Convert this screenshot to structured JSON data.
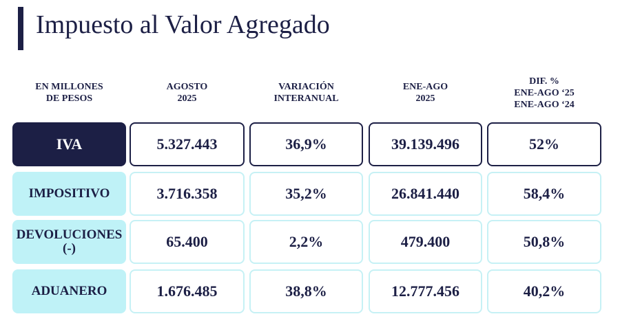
{
  "header": {
    "title": "Impuesto al Valor Agregado"
  },
  "table": {
    "columns": [
      [
        "EN MILLONES",
        "DE PESOS"
      ],
      [
        "AGOSTO",
        "2025"
      ],
      [
        "VARIACIÓN",
        "INTERANUAL"
      ],
      [
        "ENE-AGO",
        "2025"
      ],
      [
        "DIF. %",
        "ENE-AGO ‘25",
        "ENE-AGO ‘24"
      ]
    ],
    "rows": [
      {
        "label": [
          "IVA"
        ],
        "cells": [
          "5.327.443",
          "36,9%",
          "39.139.496",
          "52%"
        ]
      },
      {
        "label": [
          "IMPOSITIVO"
        ],
        "cells": [
          "3.716.358",
          "35,2%",
          "26.841.440",
          "58,4%"
        ]
      },
      {
        "label": [
          "DEVOLUCIONES",
          "(-)"
        ],
        "cells": [
          "65.400",
          "2,2%",
          "479.400",
          "50,8%"
        ]
      },
      {
        "label": [
          "ADUANERO"
        ],
        "cells": [
          "1.676.485",
          "38,8%",
          "12.777.456",
          "40,2%"
        ]
      }
    ]
  }
}
